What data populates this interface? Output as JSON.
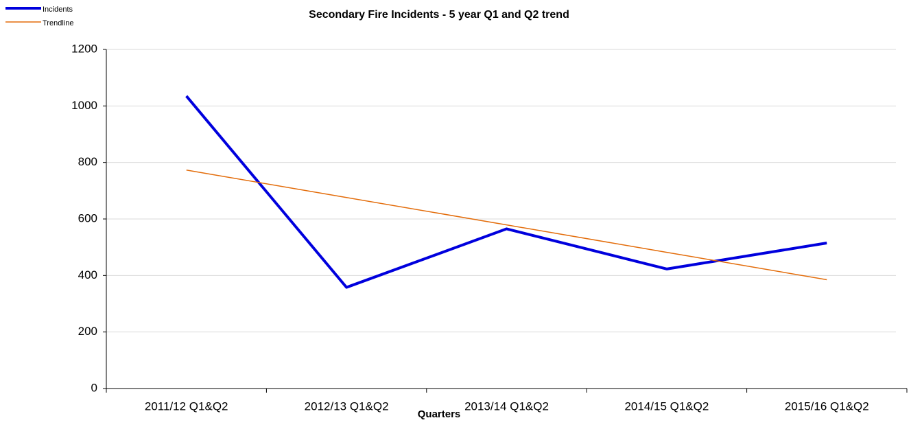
{
  "chart_data": {
    "type": "line",
    "title": "Secondary Fire Incidents - 5 year Q1 and Q2 trend",
    "x_label": "Quarters",
    "categories": [
      "2011/12 Q1&Q2",
      "2012/13 Q1&Q2",
      "2013/14 Q1&Q2",
      "2014/15 Q1&Q2",
      "2015/16 Q1&Q2"
    ],
    "series": [
      {
        "name": "Incidents",
        "color": "#0000dd",
        "values": [
          1035,
          358,
          565,
          423,
          515
        ]
      },
      {
        "name": "Trendline",
        "color": "#e36c0a",
        "values": [
          773,
          676,
          579,
          482,
          385
        ]
      }
    ],
    "ylim": [
      0,
      1200
    ],
    "yticks": [
      0,
      200,
      400,
      600,
      800,
      1000,
      1200
    ],
    "grid": true,
    "legend": "top-left"
  }
}
